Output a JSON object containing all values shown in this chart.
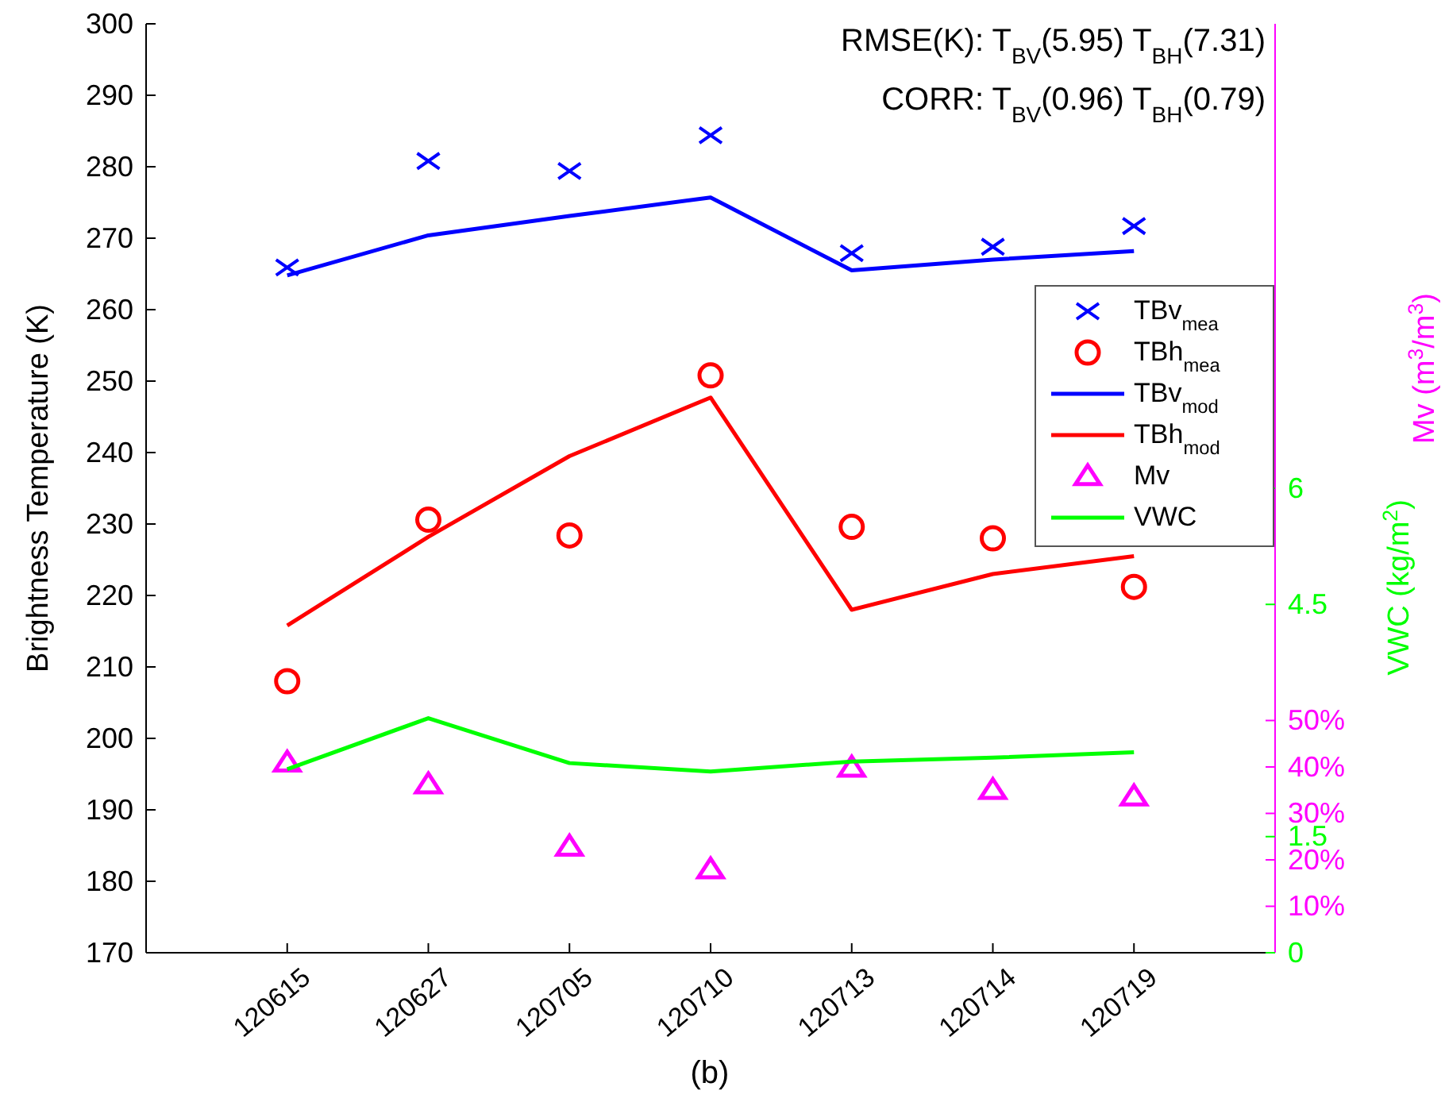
{
  "chart_data": {
    "type": "line",
    "ylabel": "Brightness Temperature (K)",
    "y2label": "VWC (kg/m$^{2}$)",
    "y3label": "Mv (m$^{3}$/m$^{3}$)",
    "categories": [
      "120615",
      "120627",
      "120705",
      "120710",
      "120713",
      "120714",
      "120719"
    ],
    "ylim": [
      170,
      300
    ],
    "yticks": [
      170,
      180,
      190,
      200,
      210,
      220,
      230,
      240,
      250,
      260,
      270,
      280,
      290,
      300
    ],
    "y2lim": [
      0,
      12
    ],
    "y2ticks": [
      0,
      1.5,
      4.5,
      6
    ],
    "y3lim": [
      0,
      200
    ],
    "y3ticks": [
      {
        "value": 10,
        "label": "10%"
      },
      {
        "value": 20,
        "label": "20%"
      },
      {
        "value": 30,
        "label": "30%"
      },
      {
        "value": 40,
        "label": "40%"
      },
      {
        "value": 50,
        "label": "50%"
      }
    ],
    "grid": false,
    "legend": "right",
    "annotations": [
      "RMSE(K): T$_{BV}$(5.95) T$_{BH}$(7.31)",
      "CORR: T$_{BV}$(0.96) T$_{BH}$(0.79)",
      "(b)"
    ],
    "series": [
      {
        "name": "TBv$_{mea}$",
        "type": "scatter",
        "marker": "cross",
        "color": "#0000ff",
        "values": [
          265.9,
          280.8,
          279.4,
          284.4,
          267.9,
          268.8,
          271.7
        ]
      },
      {
        "name": "TBh$_{mea}$",
        "type": "scatter",
        "marker": "circle",
        "color": "#ff0000",
        "values": [
          208.0,
          230.6,
          228.4,
          250.8,
          229.6,
          228.0,
          221.2
        ]
      },
      {
        "name": "TBv$_{mod}$",
        "marker": "none",
        "line_style": "solid",
        "color": "#0000ff",
        "values": [
          264.8,
          270.4,
          273.1,
          275.7,
          265.5,
          267.0,
          268.2
        ]
      },
      {
        "name": "TBh$_{mod}$",
        "marker": "none",
        "line_style": "solid",
        "color": "#ff0000",
        "values": [
          215.8,
          228.2,
          239.5,
          247.7,
          218.0,
          223.0,
          225.5
        ]
      },
      {
        "name": "Mv",
        "type": "scatter",
        "marker": "triangle",
        "axis": "y3",
        "color": "#ff00ff",
        "values": [
          40.9,
          36.2,
          22.8,
          17.9,
          39.8,
          35.0,
          33.6
        ]
      },
      {
        "name": "VWC",
        "marker": "none",
        "line_style": "solid",
        "axis": "y2",
        "color": "#00ff00",
        "values": [
          2.37,
          3.03,
          2.45,
          2.34,
          2.47,
          2.52,
          2.59
        ]
      }
    ]
  }
}
